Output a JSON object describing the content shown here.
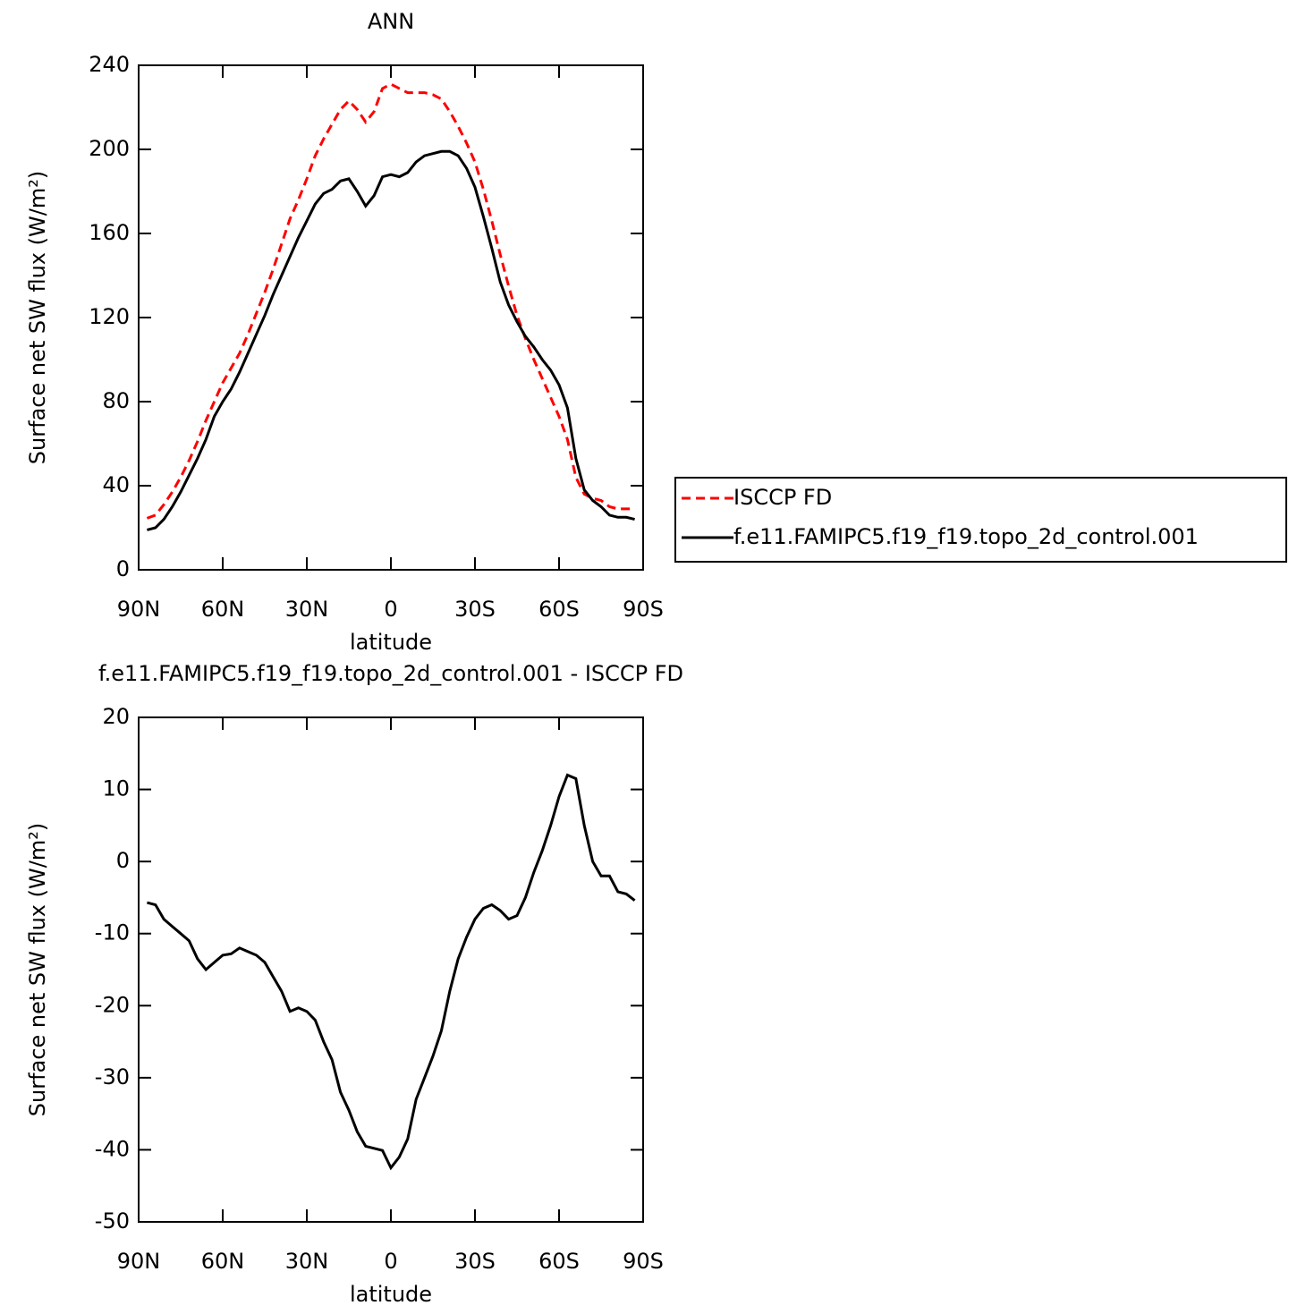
{
  "chart_data": [
    {
      "type": "line",
      "title": "ANN",
      "x_label": "latitude",
      "y_label": "Surface net SW flux (W/m²)",
      "x": [
        87,
        84,
        81,
        78,
        75,
        72,
        69,
        66,
        63,
        60,
        57,
        54,
        51,
        48,
        45,
        42,
        39,
        36,
        33,
        30,
        27,
        24,
        21,
        18,
        15,
        12,
        9,
        6,
        3,
        0,
        -3,
        -6,
        -9,
        -12,
        -15,
        -18,
        -21,
        -24,
        -27,
        -30,
        -33,
        -36,
        -39,
        -42,
        -45,
        -48,
        -51,
        -54,
        -57,
        -60,
        -63,
        -66,
        -69,
        -72,
        -75,
        -78,
        -81,
        -84,
        -87
      ],
      "series": [
        {
          "name": "ISCCP FD",
          "color": "#ff0000",
          "line_style": "dashed",
          "values": [
            24.5,
            26,
            31,
            37,
            44,
            52,
            61,
            71,
            80,
            89,
            96,
            103,
            112,
            122,
            132,
            143,
            155,
            167,
            176,
            186,
            197,
            205,
            212,
            219,
            223,
            219,
            213,
            218,
            229,
            231,
            229,
            227,
            227,
            227,
            226,
            224,
            218,
            211,
            203,
            194,
            181,
            166,
            150,
            135,
            121,
            110,
            100,
            91,
            82,
            73,
            62,
            44,
            36,
            34,
            33,
            30,
            29,
            29,
            29
          ]
        },
        {
          "name": "f.e11.FAMIPC5.f19_f19.topo_2d_control.001",
          "color": "#000000",
          "line_style": "solid",
          "values": [
            19,
            20,
            24,
            30,
            37,
            45,
            53,
            62,
            73,
            80,
            86,
            94,
            103,
            112,
            121,
            131,
            140,
            149,
            158,
            166,
            174,
            179,
            181,
            185,
            186,
            180,
            173,
            178,
            187,
            188,
            187,
            189,
            194,
            197,
            198,
            199,
            199,
            197,
            191,
            182,
            168,
            153,
            137,
            126,
            118,
            111,
            106,
            100,
            95,
            88,
            77,
            53,
            38,
            33,
            30,
            26,
            25,
            25,
            24
          ]
        }
      ],
      "xlim": [
        90,
        -90
      ],
      "xticks": [
        {
          "value": 90,
          "label": "90N"
        },
        {
          "value": 60,
          "label": "60N"
        },
        {
          "value": 30,
          "label": "30N"
        },
        0,
        {
          "value": -30,
          "label": "30S"
        },
        {
          "value": -60,
          "label": "60S"
        },
        {
          "value": -90,
          "label": "90S"
        }
      ],
      "ylim": [
        0,
        240
      ],
      "yticks": [
        0,
        40,
        80,
        120,
        160,
        200,
        240
      ],
      "legend": "right"
    },
    {
      "type": "line",
      "title": "f.e11.FAMIPC5.f19_f19.topo_2d_control.001 - ISCCP FD",
      "x_label": "latitude",
      "y_label": "Surface net SW flux (W/m²)",
      "x": [
        87,
        84,
        81,
        78,
        75,
        72,
        69,
        66,
        63,
        60,
        57,
        54,
        51,
        48,
        45,
        42,
        39,
        36,
        33,
        30,
        27,
        24,
        21,
        18,
        15,
        12,
        9,
        6,
        3,
        0,
        -3,
        -6,
        -9,
        -12,
        -15,
        -18,
        -21,
        -24,
        -27,
        -30,
        -33,
        -36,
        -39,
        -42,
        -45,
        -48,
        -51,
        -54,
        -57,
        -60,
        -63,
        -66,
        -69,
        -72,
        -75,
        -78,
        -81,
        -84,
        -87
      ],
      "series": [
        {
          "color": "#000000",
          "line_style": "solid",
          "values": [
            -5.7,
            -6,
            -8,
            -9,
            -10,
            -11,
            -13.5,
            -15,
            -14,
            -13,
            -12.8,
            -12,
            -12.5,
            -13,
            -14,
            -16,
            -18,
            -20.8,
            -20.3,
            -20.8,
            -22,
            -25,
            -27.5,
            -32,
            -34.5,
            -37.5,
            -39.5,
            -39.8,
            -40.1,
            -42.5,
            -41,
            -38.5,
            -33,
            -30,
            -27,
            -23.5,
            -18,
            -13.5,
            -10.5,
            -8,
            -6.5,
            -6,
            -6.8,
            -8,
            -7.5,
            -5,
            -1.5,
            1.5,
            5,
            9,
            12,
            11.5,
            5,
            0,
            -2,
            -2,
            -4.2,
            -4.5,
            -5.4
          ]
        }
      ],
      "xlim": [
        90,
        -90
      ],
      "xticks": [
        {
          "value": 90,
          "label": "90N"
        },
        {
          "value": 60,
          "label": "60N"
        },
        {
          "value": 30,
          "label": "30N"
        },
        0,
        {
          "value": -30,
          "label": "30S"
        },
        {
          "value": -60,
          "label": "60S"
        },
        {
          "value": -90,
          "label": "90S"
        }
      ],
      "ylim": [
        -50,
        20
      ],
      "yticks": [
        -50,
        -40,
        -30,
        -20,
        -10,
        0,
        10,
        20
      ]
    }
  ]
}
